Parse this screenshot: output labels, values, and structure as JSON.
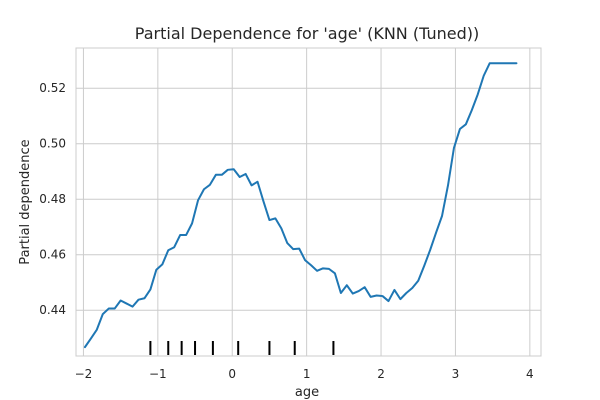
{
  "chart_data": {
    "type": "line",
    "title": "Partial Dependence for 'age' (KNN (Tuned))",
    "xlabel": "age",
    "ylabel": "Partial dependence",
    "xlim": [
      -2.1,
      4.15
    ],
    "ylim": [
      0.4235,
      0.5345
    ],
    "xticks": [
      -2,
      -1,
      0,
      1,
      2,
      3,
      4
    ],
    "xtick_labels": [
      "−2",
      "−1",
      "0",
      "1",
      "2",
      "3",
      "4"
    ],
    "yticks": [
      0.44,
      0.46,
      0.48,
      0.5,
      0.52
    ],
    "ytick_labels": [
      "0.44",
      "0.46",
      "0.48",
      "0.50",
      "0.52"
    ],
    "grid": true,
    "series_color": "#1f77b4",
    "series": [
      {
        "x": [
          -1.98,
          -1.9,
          -1.82,
          -1.74,
          -1.66,
          -1.58,
          -1.5,
          -1.42,
          -1.34,
          -1.26,
          -1.18,
          -1.1,
          -1.02,
          -0.94,
          -0.86,
          -0.78,
          -0.7,
          -0.62,
          -0.54,
          -0.46,
          -0.38,
          -0.3,
          -0.22,
          -0.14,
          -0.06,
          0.02,
          0.1,
          0.18,
          0.26,
          0.34,
          0.42,
          0.5,
          0.58,
          0.66,
          0.74,
          0.82,
          0.9,
          0.98,
          1.06,
          1.14,
          1.22,
          1.3,
          1.38,
          1.46,
          1.54,
          1.62,
          1.7,
          1.78,
          1.86,
          1.94,
          2.02,
          2.1,
          2.18,
          2.26,
          2.34,
          2.42,
          2.5,
          2.58,
          2.66,
          2.74,
          2.82,
          2.9,
          2.98,
          3.06,
          3.14,
          3.22,
          3.3,
          3.38,
          3.46,
          3.54,
          3.62,
          3.7,
          3.78,
          3.82
        ],
        "y": [
          0.4267,
          0.4298,
          0.433,
          0.4386,
          0.4406,
          0.4406,
          0.4435,
          0.4424,
          0.4413,
          0.4438,
          0.4443,
          0.4475,
          0.4546,
          0.4565,
          0.4616,
          0.4627,
          0.4671,
          0.4671,
          0.4713,
          0.4796,
          0.4836,
          0.4852,
          0.4888,
          0.4888,
          0.4906,
          0.4908,
          0.488,
          0.4891,
          0.485,
          0.4863,
          0.4792,
          0.4725,
          0.4731,
          0.4695,
          0.4642,
          0.462,
          0.4622,
          0.458,
          0.4562,
          0.4542,
          0.4551,
          0.4549,
          0.4533,
          0.4462,
          0.449,
          0.446,
          0.4469,
          0.4483,
          0.4448,
          0.4453,
          0.4451,
          0.4433,
          0.4473,
          0.444,
          0.4462,
          0.448,
          0.4506,
          0.456,
          0.4617,
          0.468,
          0.474,
          0.485,
          0.4985,
          0.5053,
          0.507,
          0.5121,
          0.5178,
          0.5245,
          0.529,
          0.529,
          0.529,
          0.529,
          0.529,
          0.529
        ]
      }
    ],
    "rug": [
      -1.1,
      -0.86,
      -0.68,
      -0.5,
      -0.26,
      0.08,
      0.5,
      0.84,
      1.36
    ]
  }
}
